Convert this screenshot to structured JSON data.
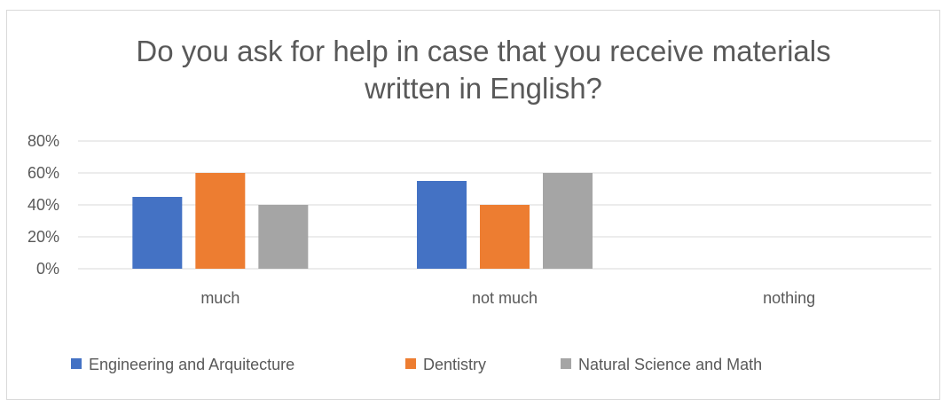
{
  "chart_data": {
    "type": "bar",
    "title": [
      "Do you ask for help in case that you receive materials",
      "written in English?"
    ],
    "categories": [
      "much",
      "not much",
      "nothing"
    ],
    "series": [
      {
        "name": "Engineering and Arquitecture",
        "values": [
          0.45,
          0.55,
          0
        ],
        "color": "#4472c4"
      },
      {
        "name": "Dentistry",
        "values": [
          0.6,
          0.4,
          0
        ],
        "color": "#ed7d31"
      },
      {
        "name": "Natural Science and Math",
        "values": [
          0.4,
          0.6,
          0
        ],
        "color": "#a5a5a5"
      }
    ],
    "yticks": [
      "0%",
      "20%",
      "40%",
      "60%",
      "80%"
    ],
    "ylim": [
      0,
      0.8
    ],
    "grid": true,
    "legend": "bottom",
    "colors": {
      "gridline": "#d9d9d9",
      "text": "#595959"
    }
  }
}
